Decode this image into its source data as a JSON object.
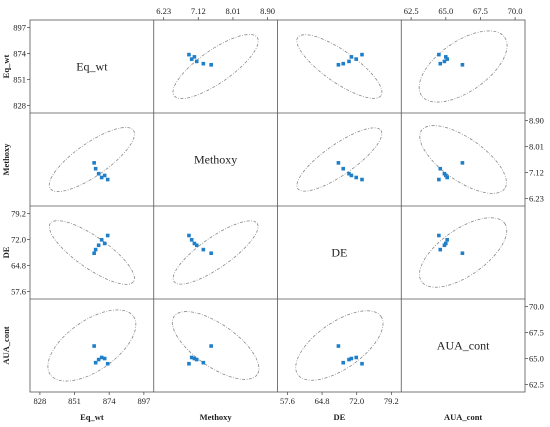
{
  "chart_data": {
    "type": "scatter",
    "variables": [
      {
        "name": "Eq_wt",
        "range": [
          828,
          897
        ],
        "ticks": [
          "828",
          "851",
          "874",
          "897"
        ]
      },
      {
        "name": "Methoxy",
        "range": [
          6.23,
          8.9
        ],
        "ticks": [
          "6.23",
          "7.12",
          "8.01",
          "8.90"
        ]
      },
      {
        "name": "DE",
        "range": [
          57.6,
          79.2
        ],
        "ticks": [
          "57.6",
          "64.8",
          "72.0",
          "79.2"
        ]
      },
      {
        "name": "AUA_cont",
        "range": [
          62.5,
          70.0
        ],
        "ticks": [
          "62.5",
          "65.0",
          "67.5",
          "70.0"
        ]
      }
    ],
    "observations": [
      {
        "Eq_wt": 865,
        "Methoxy": 7.25,
        "DE": 69.2,
        "AUA_cont": 64.6
      },
      {
        "Eq_wt": 867,
        "Methoxy": 7.08,
        "DE": 70.4,
        "AUA_cont": 64.9
      },
      {
        "Eq_wt": 869,
        "Methoxy": 6.95,
        "DE": 71.9,
        "AUA_cont": 65.1
      },
      {
        "Eq_wt": 871,
        "Methoxy": 7.02,
        "DE": 70.9,
        "AUA_cont": 65.0
      },
      {
        "Eq_wt": 864,
        "Methoxy": 7.45,
        "DE": 68.2,
        "AUA_cont": 66.2
      },
      {
        "Eq_wt": 873,
        "Methoxy": 6.88,
        "DE": 73.1,
        "AUA_cont": 64.5
      }
    ],
    "confidence_ellipses": true,
    "grid": false,
    "legend": "none"
  }
}
